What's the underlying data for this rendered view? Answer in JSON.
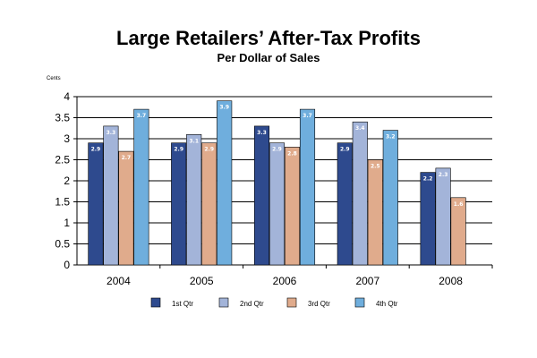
{
  "chart_data": {
    "type": "bar",
    "title": "Large Retailers’ After-Tax Profits",
    "subtitle": "Per Dollar of Sales",
    "ylabel": "Cents",
    "xlabel": "",
    "categories": [
      "2004",
      "2005",
      "2006",
      "2007",
      "2008"
    ],
    "ylim": [
      0,
      4
    ],
    "yticks": [
      "0",
      "0.5",
      "1",
      "1.5",
      "2",
      "2.5",
      "3",
      "3.5",
      "4"
    ],
    "grid": true,
    "legend_position": "bottom",
    "series": [
      {
        "name": "1st Qtr",
        "color": "#2E4A8E",
        "values": [
          2.9,
          2.9,
          3.3,
          2.9,
          2.2
        ],
        "labels": [
          "2.9",
          "2.9",
          "3.3",
          "2.9",
          "2.2"
        ]
      },
      {
        "name": "2nd Qtr",
        "color": "#A3B4D9",
        "values": [
          3.3,
          3.1,
          2.9,
          3.4,
          2.3
        ],
        "labels": [
          "3.3",
          "3.1",
          "2.9",
          "3.4",
          "2.3"
        ]
      },
      {
        "name": "3rd Qtr",
        "color": "#E0AB8C",
        "values": [
          2.7,
          2.9,
          2.8,
          2.5,
          1.6
        ],
        "labels": [
          "2.7",
          "2.9",
          "2.8",
          "2.5",
          "1.6"
        ]
      },
      {
        "name": "4th Qtr",
        "color": "#6FAEDD",
        "values": [
          3.7,
          3.9,
          3.7,
          3.2,
          null
        ],
        "labels": [
          "3.7",
          "3.9",
          "3.7",
          "3.2",
          null
        ]
      }
    ]
  }
}
